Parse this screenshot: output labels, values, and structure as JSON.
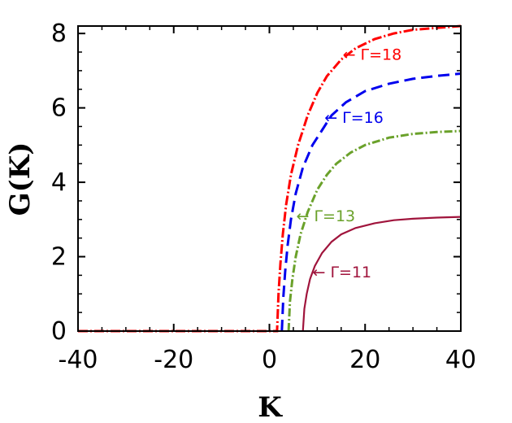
{
  "chart_data": {
    "type": "line",
    "title": "",
    "xlabel": "K",
    "ylabel": "G(K)",
    "xlim": [
      -40,
      40
    ],
    "ylim": [
      0,
      8.2
    ],
    "x_ticks": [
      -40,
      -20,
      0,
      20,
      40
    ],
    "x_tick_labels": [
      "-40",
      "-20",
      "0",
      "20",
      "40"
    ],
    "y_ticks": [
      0,
      2,
      4,
      6,
      8
    ],
    "y_tick_labels": [
      "0",
      "2",
      "4",
      "6",
      "8"
    ],
    "grid": false,
    "legend": "none",
    "series": [
      {
        "label": "← Γ=18",
        "color": "#ff0000",
        "dash": "12,3,2,3",
        "x": [
          -40,
          -30,
          -20,
          -10,
          0,
          1.6,
          1.9,
          2.3,
          2.8,
          3.5,
          4.5,
          6,
          8,
          10,
          12,
          15,
          18,
          22,
          26,
          30,
          35,
          40
        ],
        "y": [
          0,
          0,
          0,
          0,
          0,
          0,
          1.0,
          1.8,
          2.6,
          3.4,
          4.2,
          5.0,
          5.8,
          6.4,
          6.85,
          7.3,
          7.6,
          7.85,
          8.0,
          8.1,
          8.15,
          8.2
        ]
      },
      {
        "label": "← Γ=16",
        "color": "#0000ee",
        "dash": "14,7",
        "x": [
          2.6,
          2.9,
          3.3,
          3.8,
          4.5,
          5.5,
          7,
          9,
          11,
          13,
          16,
          20,
          25,
          30,
          35,
          40
        ],
        "y": [
          0,
          0.9,
          1.6,
          2.3,
          3.0,
          3.7,
          4.4,
          5.0,
          5.4,
          5.8,
          6.15,
          6.45,
          6.65,
          6.78,
          6.86,
          6.92
        ]
      },
      {
        "label": "← Γ=13",
        "color": "#6aa12a",
        "dash": "10,3,2,3",
        "x": [
          4.0,
          4.3,
          4.8,
          5.5,
          6.5,
          8,
          10,
          12,
          14,
          17,
          20,
          25,
          30,
          35,
          40
        ],
        "y": [
          0,
          0.8,
          1.4,
          2.0,
          2.6,
          3.2,
          3.8,
          4.2,
          4.5,
          4.8,
          5.0,
          5.2,
          5.3,
          5.35,
          5.38
        ]
      },
      {
        "label": "← Γ=11",
        "color": "#a0143c",
        "dash": "",
        "x": [
          7.0,
          7.3,
          7.8,
          8.5,
          9.5,
          11,
          13,
          15,
          18,
          22,
          26,
          30,
          35,
          40
        ],
        "y": [
          0,
          0.6,
          1.0,
          1.4,
          1.75,
          2.1,
          2.4,
          2.6,
          2.77,
          2.9,
          2.98,
          3.02,
          3.05,
          3.07
        ]
      }
    ],
    "annotations": [
      {
        "text": "← Γ=18",
        "x": 15.3,
        "y": 7.45,
        "color": "#ff0000"
      },
      {
        "text": "← Γ=16",
        "x": 11.5,
        "y": 5.75,
        "color": "#0000ee"
      },
      {
        "text": "← Γ=13",
        "x": 5.6,
        "y": 3.1,
        "color": "#6aa12a"
      },
      {
        "text": "← Γ=11",
        "x": 9.0,
        "y": 1.6,
        "color": "#a0143c"
      }
    ]
  }
}
